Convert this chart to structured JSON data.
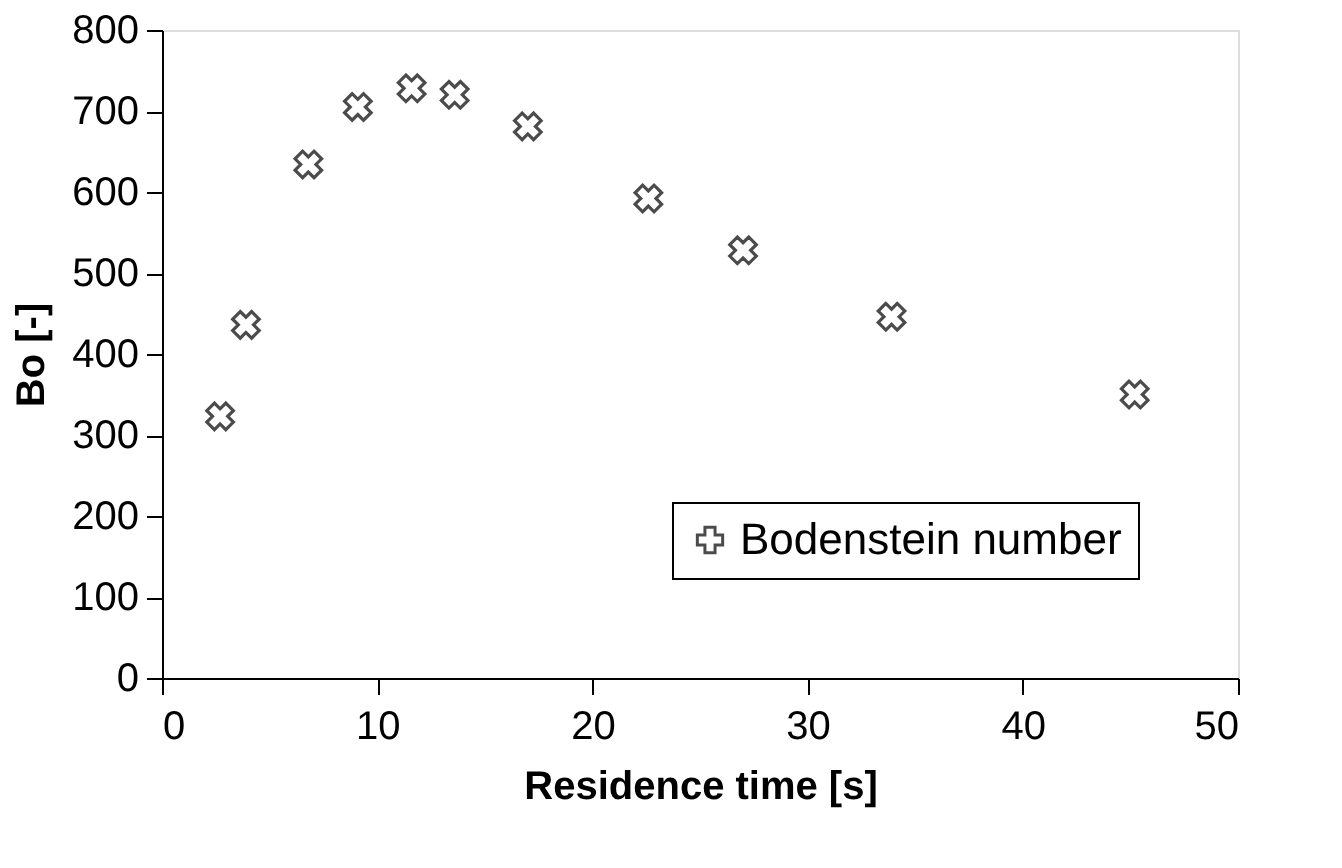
{
  "chart_data": {
    "type": "scatter",
    "xlabel": "Residence time [s]",
    "ylabel": "Bo [-]",
    "x": [
      2.7,
      3.9,
      6.8,
      9.1,
      11.6,
      13.6,
      17.0,
      22.6,
      27.0,
      33.9,
      45.2
    ],
    "series": [
      {
        "name": "Bodenstein number",
        "color": "#000000",
        "values": [
          323,
          436,
          634,
          705,
          728,
          720,
          681,
          592,
          528,
          446,
          350
        ]
      }
    ],
    "xlim": [
      0,
      50
    ],
    "xticks": [
      0,
      10,
      20,
      30,
      40,
      50
    ],
    "ylim": [
      0,
      800
    ],
    "yticks": [
      0,
      100,
      200,
      300,
      400,
      500,
      600,
      700,
      800
    ],
    "grid": false,
    "legend": "bottom right",
    "marker": "cross"
  }
}
